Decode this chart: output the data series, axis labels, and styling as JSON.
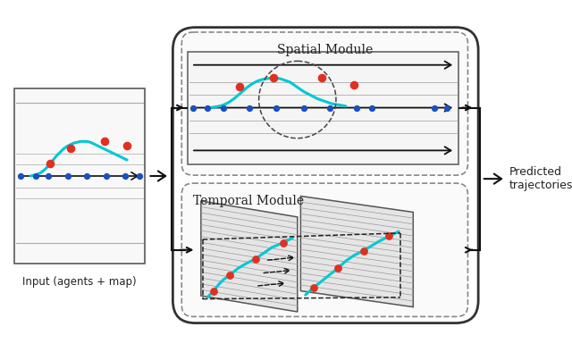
{
  "bg_color": "#ffffff",
  "input_label": "Input (agents + map)",
  "spatial_label": "Spatial Module",
  "temporal_label": "Temporal Module",
  "predicted_label": "Predicted\ntrajectories",
  "cyan_color": "#00c8d4",
  "red_color": "#e03020",
  "blue_color": "#1a50c0",
  "black_color": "#111111",
  "gray_line": "#aaaaaa",
  "dark_gray": "#555555",
  "medium_gray": "#888888"
}
